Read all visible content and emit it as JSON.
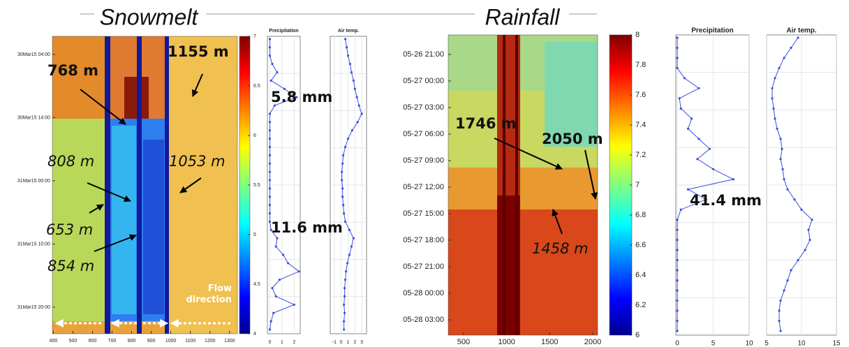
{
  "chart_data": [
    {
      "type": "heatmap",
      "title": "Snowmelt",
      "xlim": [
        395,
        1340
      ],
      "xticks": [
        400,
        500,
        600,
        700,
        800,
        900,
        1000,
        1100,
        1200,
        1300
      ],
      "ytick_labels": [
        "30Mar15 04:00",
        "30Mar15 14:00",
        "31Mar15 00:00",
        "31Mar15 10:00",
        "31Mar15 20:00"
      ],
      "clim": [
        4,
        7
      ],
      "cticks": [
        4,
        4.5,
        5,
        5.5,
        6,
        6.5,
        7
      ],
      "annotations": [
        {
          "text": "1155 m",
          "style": "bold"
        },
        {
          "text": "768 m",
          "style": "bold"
        },
        {
          "text": "808 m",
          "style": "italic"
        },
        {
          "text": "1053 m",
          "style": "italic"
        },
        {
          "text": "653 m",
          "style": "italic"
        },
        {
          "text": "854 m",
          "style": "italic"
        }
      ],
      "flow_label": "Flow direction"
    },
    {
      "type": "line",
      "title": "Precipitation",
      "color": "#3b4fd8",
      "xlim": [
        -0.2,
        2.5
      ],
      "xticks": [
        0,
        1,
        2
      ],
      "grid": true,
      "values": [
        0,
        0,
        0,
        0.2,
        0.6,
        0.1,
        1.2,
        2.2,
        0.4,
        0,
        0,
        0,
        0,
        0,
        0,
        0,
        0,
        0,
        0,
        0,
        0,
        0,
        0,
        0.1,
        0.6,
        0.5,
        1.1,
        1.5,
        2.4,
        0.8,
        0.2,
        0.5,
        2.0,
        0.3,
        0.1,
        0
      ],
      "annotations": [
        {
          "text": "5.8 mm",
          "style": "bold"
        },
        {
          "text": "11.6 mm",
          "style": "bold"
        }
      ]
    },
    {
      "type": "line",
      "title": "Air temp.",
      "color": "#3b4fd8",
      "xlim": [
        -1.6,
        3.7
      ],
      "xticks": [
        -1,
        0,
        1,
        2,
        3
      ],
      "grid": true,
      "values": [
        0.6,
        0.8,
        1.0,
        1.3,
        1.5,
        1.8,
        2.0,
        2.3,
        2.6,
        3.0,
        2.4,
        1.6,
        1.0,
        0.6,
        0.3,
        0.2,
        0.1,
        0.1,
        0.2,
        0.2,
        0.3,
        0.4,
        0.6,
        1.2,
        1.8,
        1.5,
        1.2,
        0.9,
        0.7,
        0.6,
        0.5,
        0.5,
        0.4,
        0.5,
        0.4,
        0.4
      ]
    },
    {
      "type": "heatmap",
      "title": "Rainfall",
      "xlim": [
        322,
        2057
      ],
      "xticks": [
        500,
        1000,
        1500,
        2000
      ],
      "ytick_labels": [
        "05-26 21:00",
        "05-27 00:00",
        "05-27 03:00",
        "05-27 06:00",
        "05-27 09:00",
        "05-27 12:00",
        "05-27 15:00",
        "05-27 18:00",
        "05-27 21:00",
        "05-28 00:00",
        "05-28 03:00"
      ],
      "clim": [
        6,
        8
      ],
      "cticks": [
        6,
        6.2,
        6.4,
        6.6,
        6.8,
        7,
        7.2,
        7.4,
        7.6,
        7.8,
        8
      ],
      "annotations": [
        {
          "text": "1746 m",
          "style": "bold"
        },
        {
          "text": "2050 m",
          "style": "bold"
        },
        {
          "text": "1458 m",
          "style": "italic"
        }
      ]
    },
    {
      "type": "line",
      "title": "Precipitation",
      "color": "#3b4fd8",
      "xlim": [
        -0.2,
        10
      ],
      "xticks": [
        0,
        5,
        10
      ],
      "grid": true,
      "values": [
        0,
        0,
        0,
        0,
        1,
        3,
        0.3,
        0.5,
        2,
        1.5,
        3,
        4.5,
        2.8,
        5,
        7.8,
        1.5,
        4,
        0.5,
        0,
        0,
        0,
        0,
        0,
        0,
        0,
        0,
        0,
        0,
        0,
        0
      ],
      "annotations": [
        {
          "text": "41.4 mm",
          "style": "bold"
        }
      ]
    },
    {
      "type": "line",
      "title": "Air temp.",
      "color": "#3b4fd8",
      "xlim": [
        5,
        15
      ],
      "xticks": [
        5,
        10,
        15
      ],
      "grid": true,
      "values": [
        9.5,
        8.5,
        7.5,
        6.8,
        6.2,
        5.8,
        5.8,
        6,
        6.2,
        6.5,
        7,
        7.2,
        7,
        7.3,
        7.5,
        8,
        9,
        10,
        11.5,
        11,
        11.2,
        10.5,
        9.5,
        8.5,
        8,
        7.5,
        7,
        6.8,
        6.8,
        7
      ]
    }
  ]
}
